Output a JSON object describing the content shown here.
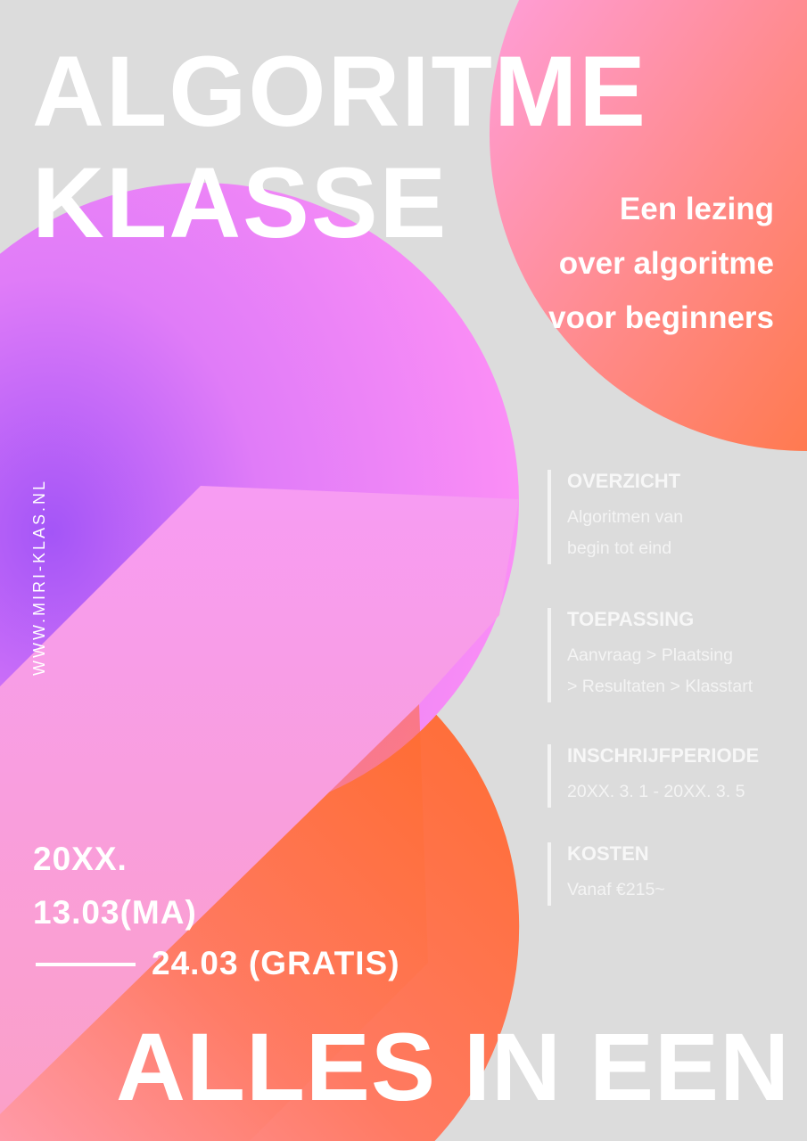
{
  "title": {
    "line1": "ALGORITME",
    "line2": "KLASSE"
  },
  "subtitle": {
    "line1": "Een lezing",
    "line2": "over algoritme",
    "line3": "voor beginners"
  },
  "website": "WWW.MIRI-KLAS.NL",
  "info": [
    {
      "heading": "OVERZICHT",
      "lines": [
        "Algoritmen van",
        "begin tot eind"
      ]
    },
    {
      "heading": "TOEPASSING",
      "lines": [
        "Aanvraag > Plaatsing",
        "> Resultaten > Klasstart"
      ]
    },
    {
      "heading": "INSCHRIJFPERIODE",
      "lines": [
        "20XX. 3. 1 - 20XX. 3. 5"
      ]
    },
    {
      "heading": "KOSTEN",
      "lines": [
        "Vanaf €215~"
      ]
    }
  ],
  "dates": {
    "year": "20XX.",
    "start": "13.03(MA)",
    "end": "24.03 (GRATIS)"
  },
  "tagline": "ALLES IN EEN",
  "colors": {
    "background": "#dcdcdc",
    "purple": "#a85cf8",
    "pink": "#f58cf5",
    "orange": "#ff6f3a"
  }
}
